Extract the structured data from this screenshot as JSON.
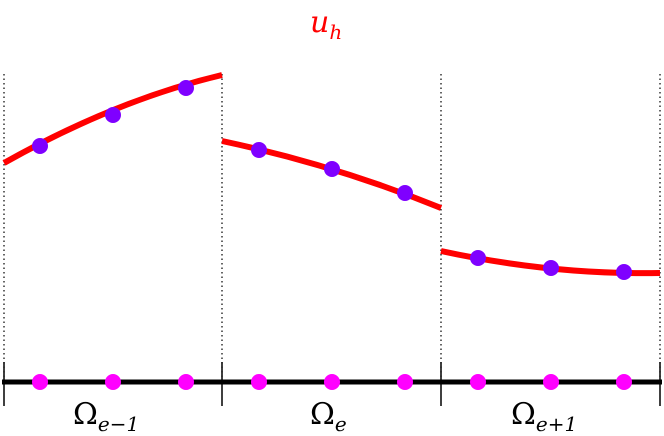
{
  "title": {
    "symbol": "u",
    "subscript": "h",
    "color": "#ff0000"
  },
  "colors": {
    "solution_curve": "#ff0000",
    "solution_nodes": "#7f00ff",
    "mesh_nodes": "#ff00ff",
    "mesh_line": "#000000",
    "element_boundary": "#000000"
  },
  "elements": [
    {
      "id": "e-1",
      "symbol": "Ω",
      "subscript": "e−1"
    },
    {
      "id": "e",
      "symbol": "Ω",
      "subscript": "e"
    },
    {
      "id": "e+1",
      "symbol": "Ω",
      "subscript": "e+1"
    }
  ]
}
